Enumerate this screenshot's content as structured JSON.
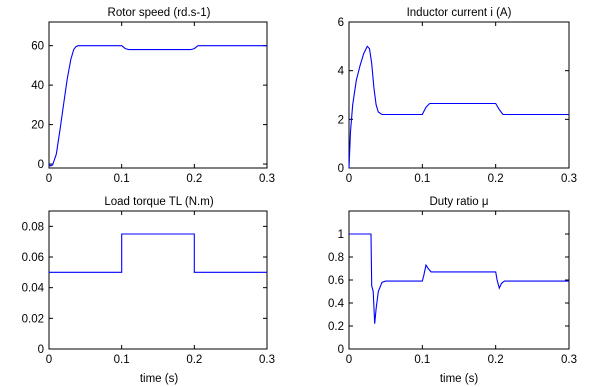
{
  "chart_data": [
    {
      "type": "line",
      "title": "Rotor speed (rd.s-1)",
      "xlabel": "",
      "ylabel": "",
      "xlim": [
        0,
        0.3
      ],
      "ylim": [
        -2,
        72
      ],
      "xticks": [
        "0",
        "0.1",
        "0.2",
        "0.3"
      ],
      "yticks": [
        "0",
        "20",
        "40",
        "60"
      ],
      "series": [
        {
          "x": [
            0,
            0.002,
            0.005,
            0.01,
            0.015,
            0.02,
            0.025,
            0.03,
            0.034,
            0.037,
            0.04,
            0.045,
            0.1,
            0.105,
            0.11,
            0.195,
            0.2,
            0.205,
            0.3
          ],
          "values": [
            0,
            -1,
            -0.5,
            5,
            17,
            30,
            43,
            53,
            58,
            59.5,
            60,
            60,
            60,
            58.5,
            58,
            58,
            58.5,
            60,
            60
          ]
        }
      ]
    },
    {
      "type": "line",
      "title": "Inductor current i (A)",
      "xlabel": "",
      "ylabel": "",
      "xlim": [
        0,
        0.3
      ],
      "ylim": [
        0,
        6
      ],
      "xticks": [
        "0",
        "0.1",
        "0.2",
        "0.3"
      ],
      "yticks": [
        "0",
        "2",
        "4",
        "6"
      ],
      "series": [
        {
          "x": [
            0,
            0.002,
            0.005,
            0.01,
            0.015,
            0.02,
            0.025,
            0.028,
            0.031,
            0.034,
            0.037,
            0.04,
            0.045,
            0.05,
            0.1,
            0.105,
            0.11,
            0.2,
            0.205,
            0.21,
            0.3
          ],
          "values": [
            0,
            1.5,
            2.6,
            3.6,
            4.2,
            4.7,
            5.0,
            4.9,
            4.3,
            3.3,
            2.6,
            2.3,
            2.2,
            2.2,
            2.2,
            2.5,
            2.65,
            2.65,
            2.4,
            2.2,
            2.2
          ]
        }
      ]
    },
    {
      "type": "line",
      "title": "Load torque TL (N.m)",
      "xlabel": "time (s)",
      "ylabel": "",
      "xlim": [
        0,
        0.3
      ],
      "ylim": [
        0,
        0.09
      ],
      "xticks": [
        "0",
        "0.1",
        "0.2",
        "0.3"
      ],
      "yticks": [
        "0",
        "0.02",
        "0.04",
        "0.06",
        "0.08"
      ],
      "series": [
        {
          "x": [
            0,
            0.1,
            0.1,
            0.2,
            0.2,
            0.3
          ],
          "values": [
            0.05,
            0.05,
            0.075,
            0.075,
            0.05,
            0.05
          ]
        }
      ]
    },
    {
      "type": "line",
      "title": "Duty ratio μ",
      "xlabel": "time (s)",
      "ylabel": "",
      "xlim": [
        0,
        0.3
      ],
      "ylim": [
        0,
        1.2
      ],
      "xticks": [
        "0",
        "0.1",
        "0.2",
        "0.3"
      ],
      "yticks": [
        "0",
        "0.2",
        "0.4",
        "0.6",
        "0.8",
        "1"
      ],
      "series": [
        {
          "x": [
            0,
            0.03,
            0.031,
            0.033,
            0.035,
            0.037,
            0.04,
            0.045,
            0.05,
            0.1,
            0.102,
            0.105,
            0.108,
            0.112,
            0.2,
            0.202,
            0.205,
            0.208,
            0.212,
            0.3
          ],
          "values": [
            1.0,
            1.0,
            0.55,
            0.5,
            0.22,
            0.35,
            0.5,
            0.58,
            0.59,
            0.59,
            0.64,
            0.73,
            0.7,
            0.67,
            0.67,
            0.6,
            0.53,
            0.57,
            0.59,
            0.59
          ]
        }
      ]
    }
  ],
  "colors": {
    "series": "#0000ff",
    "axes": "#000000"
  }
}
